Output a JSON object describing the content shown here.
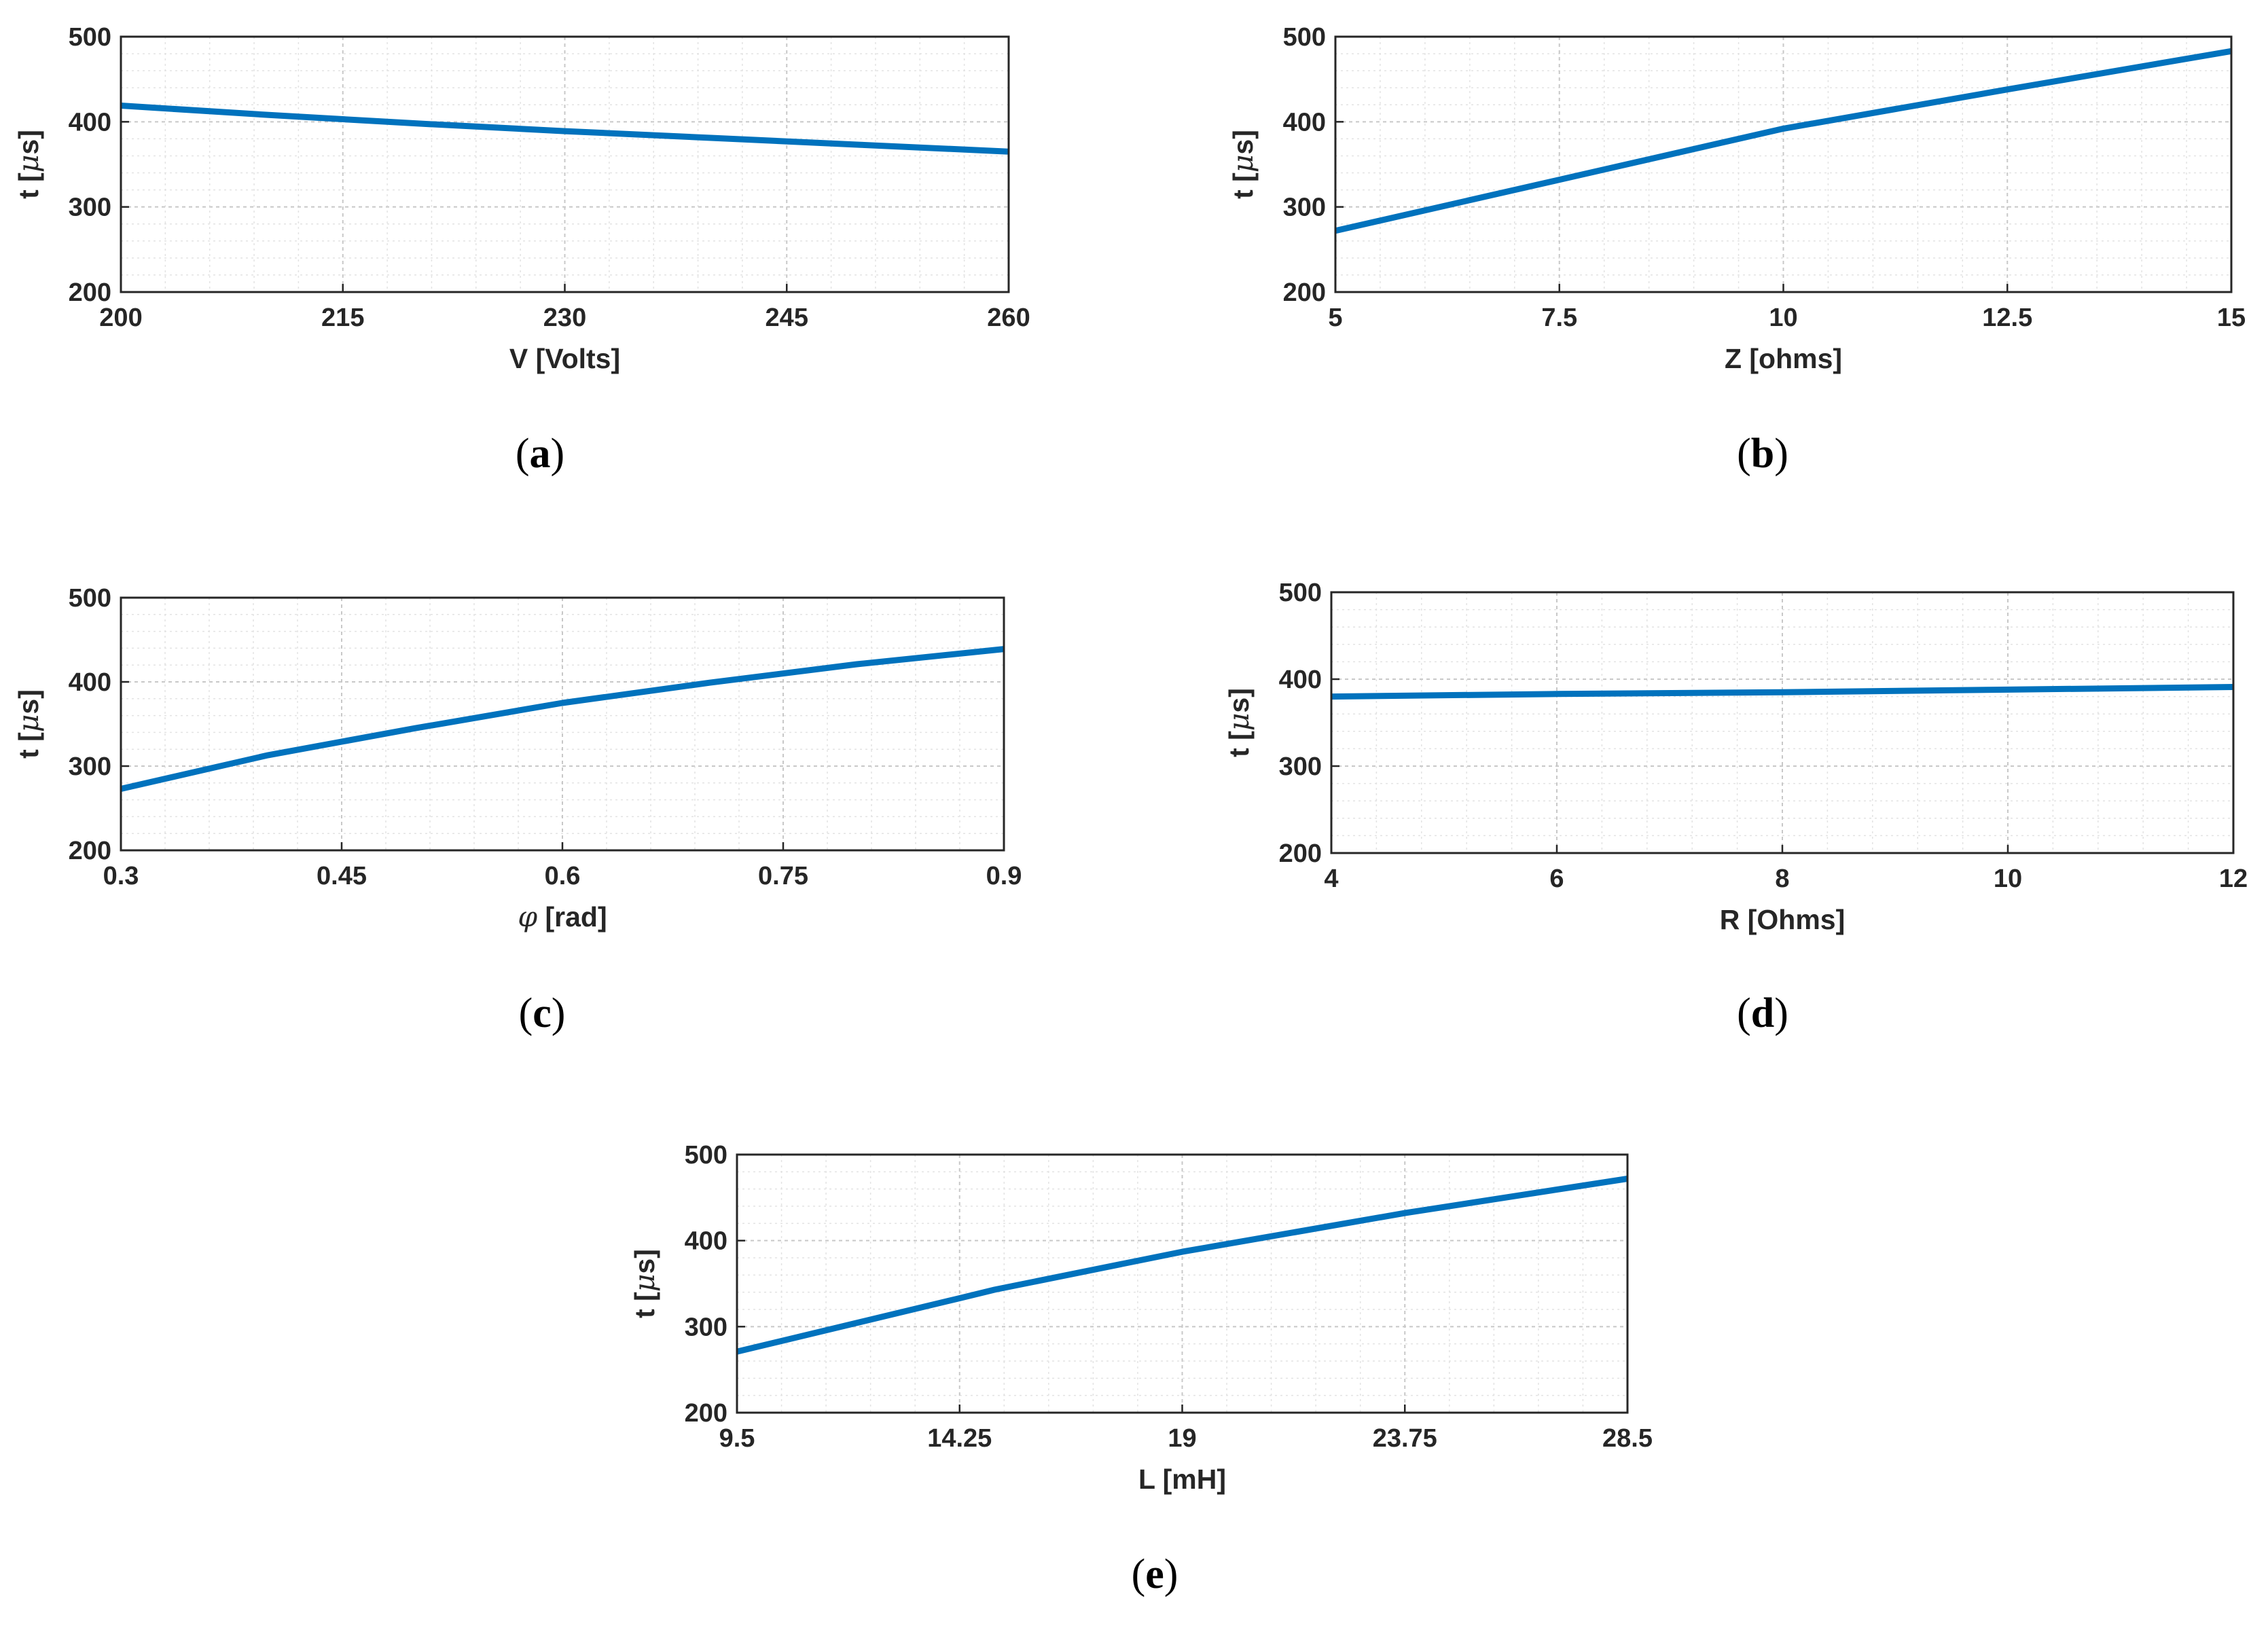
{
  "chart_data": [
    {
      "type": "line",
      "caption_letter": "a",
      "xlabel": "V [Volts]",
      "ylabel": "t [μs]",
      "xlim": [
        200,
        260
      ],
      "ylim": [
        200,
        500
      ],
      "xticks": [
        200,
        215,
        230,
        245,
        260
      ],
      "xtick_labels": [
        "200",
        "215",
        "230",
        "245",
        "260"
      ],
      "yticks": [
        200,
        300,
        400,
        500
      ],
      "ytick_labels": [
        "200",
        "300",
        "400",
        "500"
      ],
      "grid": true,
      "color": "#0072BD",
      "x": [
        200,
        210,
        220,
        230,
        240,
        250,
        260
      ],
      "y": [
        419,
        408,
        398,
        389,
        381,
        373,
        365
      ]
    },
    {
      "type": "line",
      "caption_letter": "b",
      "xlabel": "Z [ohms]",
      "ylabel": "t [μs]",
      "xlim": [
        5,
        15
      ],
      "ylim": [
        200,
        500
      ],
      "xticks": [
        5,
        7.5,
        10,
        12.5,
        15
      ],
      "xtick_labels": [
        "5",
        "7.5",
        "10",
        "12.5",
        "15"
      ],
      "yticks": [
        200,
        300,
        400,
        500
      ],
      "ytick_labels": [
        "200",
        "300",
        "400",
        "500"
      ],
      "grid": true,
      "color": "#0072BD",
      "x": [
        5,
        7.5,
        10,
        12.5,
        15
      ],
      "y": [
        272,
        332,
        392,
        438,
        483
      ]
    },
    {
      "type": "line",
      "caption_letter": "c",
      "xlabel": "φ [rad]",
      "ylabel": "t [μs]",
      "xlim": [
        0.3,
        0.9
      ],
      "ylim": [
        200,
        500
      ],
      "xticks": [
        0.3,
        0.45,
        0.6,
        0.75,
        0.9
      ],
      "xtick_labels": [
        "0.3",
        "0.45",
        "0.6",
        "0.75",
        "0.9"
      ],
      "yticks": [
        200,
        300,
        400,
        500
      ],
      "ytick_labels": [
        "200",
        "300",
        "400",
        "500"
      ],
      "grid": true,
      "color": "#0072BD",
      "x": [
        0.3,
        0.4,
        0.5,
        0.6,
        0.7,
        0.8,
        0.9
      ],
      "y": [
        273,
        313,
        345,
        375,
        399,
        421,
        439
      ]
    },
    {
      "type": "line",
      "caption_letter": "d",
      "xlabel": "R [Ohms]",
      "ylabel": "t [μs]",
      "xlim": [
        4,
        12
      ],
      "ylim": [
        200,
        500
      ],
      "xticks": [
        4,
        6,
        8,
        10,
        12
      ],
      "xtick_labels": [
        "4",
        "6",
        "8",
        "10",
        "12"
      ],
      "yticks": [
        200,
        300,
        400,
        500
      ],
      "ytick_labels": [
        "200",
        "300",
        "400",
        "500"
      ],
      "grid": true,
      "color": "#0072BD",
      "x": [
        4,
        6,
        8,
        10,
        12
      ],
      "y": [
        380,
        383,
        385,
        388,
        391
      ]
    },
    {
      "type": "line",
      "caption_letter": "e",
      "xlabel": "L [mH]",
      "ylabel": "t [μs]",
      "xlim": [
        9.5,
        28.5
      ],
      "ylim": [
        200,
        500
      ],
      "xticks": [
        9.5,
        14.25,
        19,
        23.75,
        28.5
      ],
      "xtick_labels": [
        "9.5",
        "14.25",
        "19",
        "23.75",
        "28.5"
      ],
      "yticks": [
        200,
        300,
        400,
        500
      ],
      "ytick_labels": [
        "200",
        "300",
        "400",
        "500"
      ],
      "grid": true,
      "color": "#0072BD",
      "x": [
        9.5,
        14.25,
        15,
        19,
        23.75,
        28.5
      ],
      "y": [
        271,
        333,
        343,
        387,
        432,
        472
      ]
    }
  ]
}
